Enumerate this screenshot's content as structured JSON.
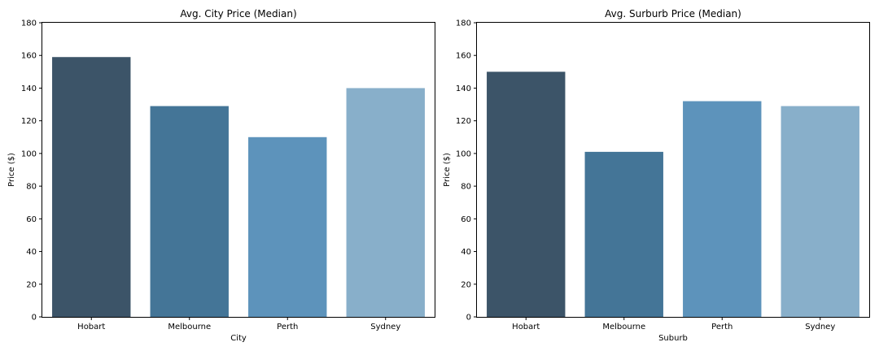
{
  "chart_data": [
    {
      "type": "bar",
      "title": "Avg. City Price (Median)",
      "xlabel": "City",
      "ylabel": "Price ($)",
      "categories": [
        "Hobart",
        "Melbourne",
        "Perth",
        "Sydney"
      ],
      "values": [
        159,
        129,
        110,
        140
      ],
      "ylim": [
        0,
        180
      ],
      "yticks": [
        0,
        20,
        40,
        60,
        80,
        100,
        120,
        140,
        160,
        180
      ],
      "colors": [
        "#3c5468",
        "#447597",
        "#5d93bb",
        "#88afca"
      ],
      "grid": false,
      "legend": "none"
    },
    {
      "type": "bar",
      "title": "Avg. Surburb Price (Median)",
      "xlabel": "Suburb",
      "ylabel": "Price ($)",
      "categories": [
        "Hobart",
        "Melbourne",
        "Perth",
        "Sydney"
      ],
      "values": [
        150,
        101,
        132,
        129
      ],
      "ylim": [
        0,
        180
      ],
      "yticks": [
        0,
        20,
        40,
        60,
        80,
        100,
        120,
        140,
        160,
        180
      ],
      "colors": [
        "#3c5468",
        "#447597",
        "#5d93bb",
        "#88afca"
      ],
      "grid": false,
      "legend": "none"
    }
  ]
}
